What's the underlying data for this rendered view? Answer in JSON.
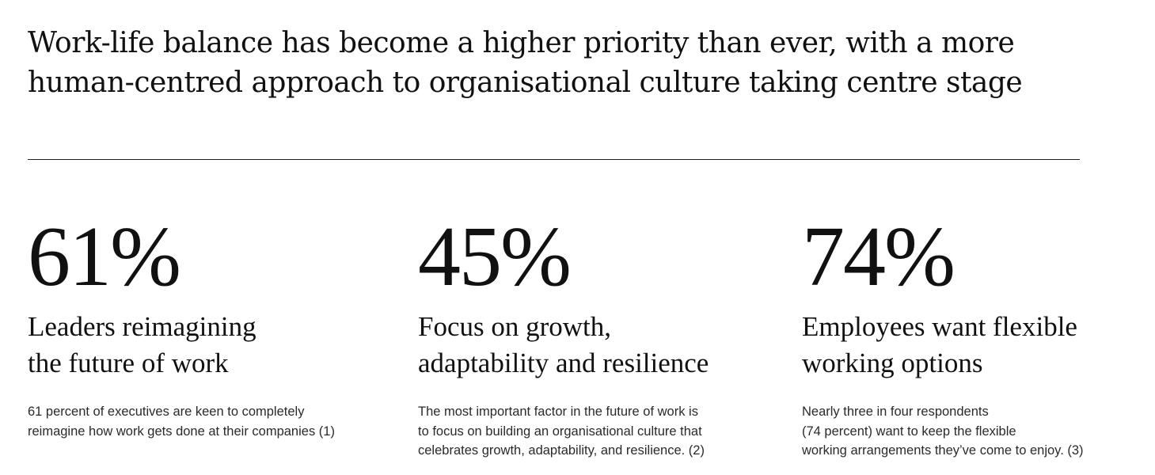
{
  "headline": {
    "line1": "Work-life balance has become a higher priority than ever, with a more",
    "line2": "human-centred approach to organisational culture taking centre stage"
  },
  "stats": [
    {
      "value": "61%",
      "title_lines": [
        "Leaders reimagining",
        "the future of work"
      ],
      "body_lines": [
        "61 percent of executives are keen to completely",
        "reimagine how work gets done at their companies (1)"
      ]
    },
    {
      "value": "45%",
      "title_lines": [
        "Focus on growth,",
        "adaptability and resilience"
      ],
      "body_lines": [
        "The most important factor in the future of work is",
        "to focus on building an organisational culture that",
        "celebrates growth, adaptability, and resilience. (2)"
      ]
    },
    {
      "value": "74%",
      "title_lines": [
        "Employees want flexible",
        "working options"
      ],
      "body_lines": [
        "Nearly three in four respondents",
        "(74 percent) want to keep the flexible",
        "working arrangements they’ve come to enjoy. (3)"
      ]
    }
  ]
}
